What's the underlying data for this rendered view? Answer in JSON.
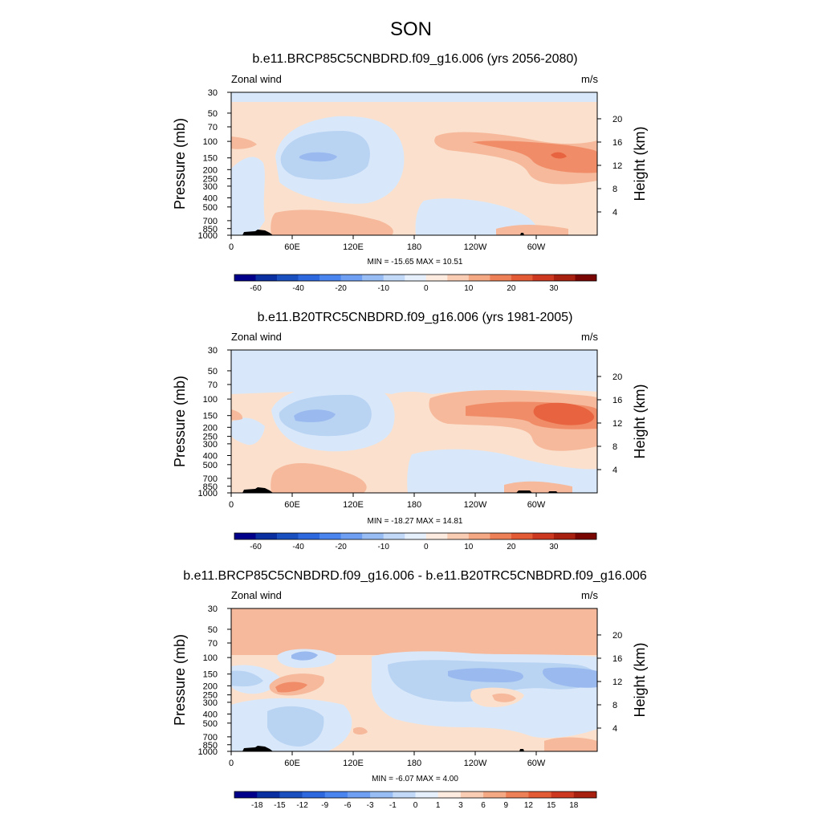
{
  "figure": {
    "title": "SON"
  },
  "colors": {
    "r0": "#a8ccf0",
    "r1": "#fbe1cd",
    "r2": "#f6b99c",
    "r3": "#f08d68",
    "r4": "#e8633f",
    "b1": "#d8e8fa",
    "b2": "#b9d3f3",
    "b3": "#99b9ef",
    "b4": "#7da2f0",
    "terrain": "#000000"
  },
  "chart_data": [
    {
      "type": "contour",
      "title": "b.e11.BRCP85C5CNBDRD.f09_g16.006 (yrs 2056-2080)",
      "corner_left": "Zonal wind",
      "corner_right": "m/s",
      "ylabel": "Pressure (mb)",
      "ylabel_right": "Height (km)",
      "x_ticks": [
        "0",
        "60E",
        "120E",
        "180",
        "120W",
        "60W"
      ],
      "y_ticks": [
        "30",
        "50",
        "70",
        "100",
        "150",
        "200",
        "250",
        "300",
        "400",
        "500",
        "700",
        "850",
        "1000"
      ],
      "y_right_ticks": [
        "20",
        "16",
        "12",
        "8",
        "4"
      ],
      "stats": "MIN = -15.65  MAX =  10.51",
      "colorbar_labels": [
        "-60",
        "-40",
        "-20",
        "-10",
        "0",
        "10",
        "20",
        "30"
      ],
      "colorbar_colors": [
        "#00008b",
        "#0a2fa0",
        "#1a4fc0",
        "#2e68de",
        "#4a84ee",
        "#6e9ff2",
        "#98bdf4",
        "#c2d9f8",
        "#e6effc",
        "#fdebe0",
        "#f9cdb4",
        "#f4a884",
        "#ee8058",
        "#e35b35",
        "#cc3920",
        "#a8200f",
        "#7a0603"
      ]
    },
    {
      "type": "contour",
      "title": "b.e11.B20TRC5CNBDRD.f09_g16.006 (yrs 1981-2005)",
      "corner_left": "Zonal wind",
      "corner_right": "m/s",
      "ylabel": "Pressure (mb)",
      "ylabel_right": "Height (km)",
      "x_ticks": [
        "0",
        "60E",
        "120E",
        "180",
        "120W",
        "60W"
      ],
      "y_ticks": [
        "30",
        "50",
        "70",
        "100",
        "150",
        "200",
        "250",
        "300",
        "400",
        "500",
        "700",
        "850",
        "1000"
      ],
      "y_right_ticks": [
        "20",
        "16",
        "12",
        "8",
        "4"
      ],
      "stats": "MIN = -18.27  MAX =  14.81",
      "colorbar_labels": [
        "-60",
        "-40",
        "-20",
        "-10",
        "0",
        "10",
        "20",
        "30"
      ],
      "colorbar_colors": [
        "#00008b",
        "#0a2fa0",
        "#1a4fc0",
        "#2e68de",
        "#4a84ee",
        "#6e9ff2",
        "#98bdf4",
        "#c2d9f8",
        "#e6effc",
        "#fdebe0",
        "#f9cdb4",
        "#f4a884",
        "#ee8058",
        "#e35b35",
        "#cc3920",
        "#a8200f",
        "#7a0603"
      ]
    },
    {
      "type": "contour",
      "title": "b.e11.BRCP85C5CNBDRD.f09_g16.006 - b.e11.B20TRC5CNBDRD.f09_g16.006",
      "corner_left": "Zonal wind",
      "corner_right": "m/s",
      "ylabel": "Pressure (mb)",
      "ylabel_right": "Height (km)",
      "x_ticks": [
        "0",
        "60E",
        "120E",
        "180",
        "120W",
        "60W"
      ],
      "y_ticks": [
        "30",
        "50",
        "70",
        "100",
        "150",
        "200",
        "250",
        "300",
        "400",
        "500",
        "700",
        "850",
        "1000"
      ],
      "y_right_ticks": [
        "20",
        "16",
        "12",
        "8",
        "4"
      ],
      "stats": "MIN = -6.07  MAX =  4.00",
      "colorbar_labels": [
        "-18",
        "-15",
        "-12",
        "-9",
        "-6",
        "-3",
        "-1",
        "0",
        "1",
        "3",
        "6",
        "9",
        "12",
        "15",
        "18"
      ],
      "colorbar_colors": [
        "#00008b",
        "#0a2fa0",
        "#1a4fc0",
        "#2e68de",
        "#4a84ee",
        "#6e9ff2",
        "#98bdf4",
        "#c2d9f8",
        "#e6effc",
        "#fdebe0",
        "#f9cdb4",
        "#f4a884",
        "#ee8058",
        "#e35b35",
        "#cc3920",
        "#a8200f"
      ]
    }
  ]
}
